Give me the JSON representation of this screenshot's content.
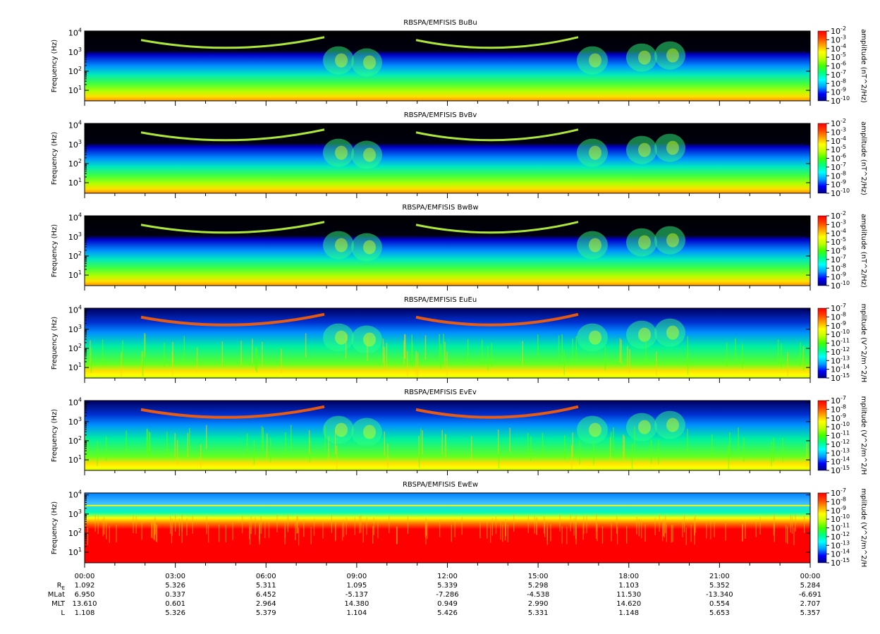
{
  "chart_data": {
    "type": "heatmap",
    "xaxis": {
      "tick_labels": [
        "00:00",
        "03:00",
        "06:00",
        "09:00",
        "12:00",
        "15:00",
        "18:00",
        "21:00",
        "00:00"
      ],
      "minor_ticks_per_major": 6
    },
    "colormap": [
      "#000080",
      "#0000ff",
      "#00a0ff",
      "#00ffff",
      "#00ff80",
      "#40ff00",
      "#c0ff00",
      "#ffff00",
      "#ffa000",
      "#ff4000",
      "#ff0000"
    ],
    "panels": [
      {
        "title": "RBSPA/EMFISIS  BuBu",
        "ylabel": "Frequency (Hz)",
        "yticks": [
          "10",
          "10",
          "10",
          "10"
        ],
        "ytick_exps": [
          "1",
          "2",
          "3",
          "4"
        ],
        "colorbar_label": "amplitude (nT^2/Hz)",
        "colorbar_range": [
          -10,
          -2
        ],
        "colorbar_ticks": [
          "10",
          "10",
          "10",
          "10",
          "10",
          "10",
          "10",
          "10",
          "10"
        ],
        "colorbar_exps": [
          "-2",
          "-3",
          "-4",
          "-5",
          "-6",
          "-7",
          "-8",
          "-9",
          "-10"
        ]
      },
      {
        "title": "RBSPA/EMFISIS  BvBv",
        "ylabel": "Frequency (Hz)",
        "yticks": [
          "10",
          "10",
          "10",
          "10"
        ],
        "ytick_exps": [
          "1",
          "2",
          "3",
          "4"
        ],
        "colorbar_label": "amplitude (nT^2/Hz)",
        "colorbar_range": [
          -10,
          -2
        ],
        "colorbar_ticks": [
          "10",
          "10",
          "10",
          "10",
          "10",
          "10",
          "10",
          "10",
          "10"
        ],
        "colorbar_exps": [
          "-2",
          "-3",
          "-4",
          "-5",
          "-6",
          "-7",
          "-8",
          "-9",
          "-10"
        ]
      },
      {
        "title": "RBSPA/EMFISIS  BwBw",
        "ylabel": "Frequency (Hz)",
        "yticks": [
          "10",
          "10",
          "10",
          "10"
        ],
        "ytick_exps": [
          "1",
          "2",
          "3",
          "4"
        ],
        "colorbar_label": "amplitude (nT^2/Hz)",
        "colorbar_range": [
          -10,
          -2
        ],
        "colorbar_ticks": [
          "10",
          "10",
          "10",
          "10",
          "10",
          "10",
          "10",
          "10",
          "10"
        ],
        "colorbar_exps": [
          "-2",
          "-3",
          "-4",
          "-5",
          "-6",
          "-7",
          "-8",
          "-9",
          "-10"
        ]
      },
      {
        "title": "RBSPA/EMFISIS  EuEu",
        "ylabel": "Frequency (Hz)",
        "yticks": [
          "10",
          "10",
          "10",
          "10"
        ],
        "ytick_exps": [
          "1",
          "2",
          "3",
          "4"
        ],
        "colorbar_label": "mplitude (V^2/m^2/H",
        "colorbar_range": [
          -15,
          -7
        ],
        "colorbar_ticks": [
          "10",
          "10",
          "10",
          "10",
          "10",
          "10",
          "10",
          "10",
          "10"
        ],
        "colorbar_exps": [
          "-7",
          "-8",
          "-9",
          "-10",
          "-11",
          "-12",
          "-13",
          "-14",
          "-15"
        ]
      },
      {
        "title": "RBSPA/EMFISIS  EvEv",
        "ylabel": "Frequency (Hz)",
        "yticks": [
          "10",
          "10",
          "10",
          "10"
        ],
        "ytick_exps": [
          "1",
          "2",
          "3",
          "4"
        ],
        "colorbar_label": "mplitude (V^2/m^2/H",
        "colorbar_range": [
          -15,
          -7
        ],
        "colorbar_ticks": [
          "10",
          "10",
          "10",
          "10",
          "10",
          "10",
          "10",
          "10",
          "10"
        ],
        "colorbar_exps": [
          "-7",
          "-8",
          "-9",
          "-10",
          "-11",
          "-12",
          "-13",
          "-14",
          "-15"
        ]
      },
      {
        "title": "RBSPA/EMFISIS  EwEw",
        "ylabel": "Frequency (Hz)",
        "yticks": [
          "10",
          "10",
          "10",
          "10"
        ],
        "ytick_exps": [
          "1",
          "2",
          "3",
          "4"
        ],
        "colorbar_label": "mplitude (V^2/m^2/H",
        "colorbar_range": [
          -15,
          -7
        ],
        "colorbar_ticks": [
          "10",
          "10",
          "10",
          "10",
          "10",
          "10",
          "10",
          "10",
          "10"
        ],
        "colorbar_exps": [
          "-7",
          "-8",
          "-9",
          "-10",
          "-11",
          "-12",
          "-13",
          "-14",
          "-15"
        ]
      }
    ],
    "ephemeris": [
      {
        "label": "R",
        "subscript": "E",
        "values": [
          "1.092",
          "5.326",
          "5.311",
          "1.095",
          "5.339",
          "5.298",
          "1.103",
          "5.352",
          "5.284"
        ]
      },
      {
        "label": "MLat",
        "subscript": "",
        "values": [
          "6.950",
          "0.337",
          "6.452",
          "-5.137",
          "-7.286",
          "-4.538",
          "11.530",
          "-13.340",
          "-6.691"
        ]
      },
      {
        "label": "MLT",
        "subscript": "",
        "values": [
          "13.610",
          "0.601",
          "2.964",
          "14.380",
          "0.949",
          "2.990",
          "14.620",
          "0.554",
          "2.707"
        ]
      },
      {
        "label": "L",
        "subscript": "",
        "values": [
          "1.108",
          "5.326",
          "5.379",
          "1.104",
          "5.426",
          "5.331",
          "1.148",
          "5.653",
          "5.357"
        ]
      }
    ]
  }
}
